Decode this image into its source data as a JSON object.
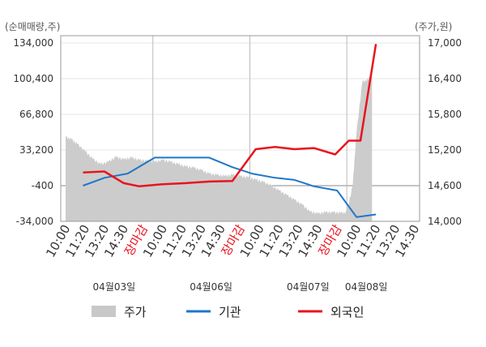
{
  "chart_data": {
    "type": "line",
    "left_unit": "(순매매량,주)",
    "right_unit": "(주가,원)",
    "y_left": {
      "range": [
        -34000,
        134000
      ],
      "ticks": [
        "134,000",
        "100,400",
        "66,800",
        "33,200",
        "-400",
        "-34,000"
      ]
    },
    "y_right": {
      "range": [
        14000,
        17000
      ],
      "ticks": [
        "17,000",
        "16,400",
        "15,800",
        "15,200",
        "14,600",
        "14,000"
      ]
    },
    "x_ticks": [
      {
        "label": "10:00",
        "color": "#333333"
      },
      {
        "label": "11:20",
        "color": "#333333"
      },
      {
        "label": "13:20",
        "color": "#333333"
      },
      {
        "label": "14:30",
        "color": "#333333"
      },
      {
        "label": "장마감",
        "color": "#e8141e"
      },
      {
        "label": "10:00",
        "color": "#333333"
      },
      {
        "label": "11:20",
        "color": "#333333"
      },
      {
        "label": "13:20",
        "color": "#333333"
      },
      {
        "label": "14:30",
        "color": "#333333"
      },
      {
        "label": "장마감",
        "color": "#e8141e"
      },
      {
        "label": "10:00",
        "color": "#333333"
      },
      {
        "label": "11:20",
        "color": "#333333"
      },
      {
        "label": "13:20",
        "color": "#333333"
      },
      {
        "label": "14:30",
        "color": "#333333"
      },
      {
        "label": "장마감",
        "color": "#e8141e"
      },
      {
        "label": "10:00",
        "color": "#333333"
      },
      {
        "label": "11:20",
        "color": "#333333"
      },
      {
        "label": "13:20",
        "color": "#333333"
      },
      {
        "label": "14:30",
        "color": "#333333"
      }
    ],
    "day_labels": [
      {
        "label": "04월03일",
        "tick_index": 2.5
      },
      {
        "label": "04월06일",
        "tick_index": 7.5
      },
      {
        "label": "04월07일",
        "tick_index": 12.5
      },
      {
        "label": "04월08일",
        "tick_index": 15.5
      }
    ],
    "day_dividers": [
      4.5,
      9.5,
      14.5
    ],
    "price": {
      "name": "주가",
      "color": "#cccccc",
      "points": [
        [
          0,
          15420
        ],
        [
          0.3,
          15380
        ],
        [
          0.6,
          15300
        ],
        [
          1.0,
          15180
        ],
        [
          1.4,
          15050
        ],
        [
          1.8,
          14960
        ],
        [
          2.2,
          15000
        ],
        [
          2.6,
          15080
        ],
        [
          3.0,
          15040
        ],
        [
          3.4,
          15070
        ],
        [
          3.8,
          15030
        ],
        [
          4.2,
          15020
        ],
        [
          4.6,
          15000
        ],
        [
          5.0,
          15030
        ],
        [
          5.4,
          15000
        ],
        [
          5.8,
          14960
        ],
        [
          6.2,
          14920
        ],
        [
          6.6,
          14900
        ],
        [
          7.0,
          14860
        ],
        [
          7.4,
          14800
        ],
        [
          7.8,
          14780
        ],
        [
          8.2,
          14760
        ],
        [
          8.6,
          14780
        ],
        [
          9.0,
          14760
        ],
        [
          9.4,
          14740
        ],
        [
          9.8,
          14700
        ],
        [
          10.2,
          14660
        ],
        [
          10.6,
          14600
        ],
        [
          11.0,
          14520
        ],
        [
          11.4,
          14440
        ],
        [
          11.8,
          14360
        ],
        [
          12.2,
          14280
        ],
        [
          12.6,
          14160
        ],
        [
          13.0,
          14130
        ],
        [
          13.4,
          14150
        ],
        [
          13.8,
          14150
        ],
        [
          14.2,
          14140
        ],
        [
          14.5,
          14150
        ],
        [
          14.8,
          14600
        ],
        [
          15.0,
          15500
        ],
        [
          15.3,
          16350
        ],
        [
          15.6,
          16380
        ],
        [
          15.8,
          16550
        ]
      ]
    },
    "series": [
      {
        "name": "기관",
        "color": "#1f77c8",
        "points": [
          [
            0.9,
            -400
          ],
          [
            2.0,
            7000
          ],
          [
            3.2,
            11000
          ],
          [
            4.6,
            26000
          ],
          [
            6.0,
            26000
          ],
          [
            7.4,
            26000
          ],
          [
            8.6,
            17000
          ],
          [
            9.6,
            11000
          ],
          [
            10.8,
            7000
          ],
          [
            11.8,
            5000
          ],
          [
            12.8,
            -1000
          ],
          [
            14.0,
            -5000
          ],
          [
            15.0,
            -30000
          ],
          [
            16.0,
            -27500
          ]
        ]
      },
      {
        "name": "외국인",
        "color": "#e8141e",
        "points": [
          [
            0.9,
            12000
          ],
          [
            2.0,
            13000
          ],
          [
            3.0,
            2000
          ],
          [
            3.8,
            -1000
          ],
          [
            5.0,
            1000
          ],
          [
            6.2,
            2000
          ],
          [
            7.4,
            3500
          ],
          [
            8.6,
            4000
          ],
          [
            9.8,
            34000
          ],
          [
            10.8,
            36000
          ],
          [
            11.8,
            34000
          ],
          [
            12.8,
            35000
          ],
          [
            13.9,
            29000
          ],
          [
            14.6,
            42000
          ],
          [
            15.2,
            42000
          ],
          [
            16.0,
            133000
          ]
        ]
      }
    ],
    "legend": [
      {
        "label": "주가",
        "kind": "area",
        "color": "#c8c8c8"
      },
      {
        "label": "기관",
        "kind": "line",
        "color": "#1f77c8"
      },
      {
        "label": "외국인",
        "kind": "line",
        "color": "#e8141e"
      }
    ]
  }
}
